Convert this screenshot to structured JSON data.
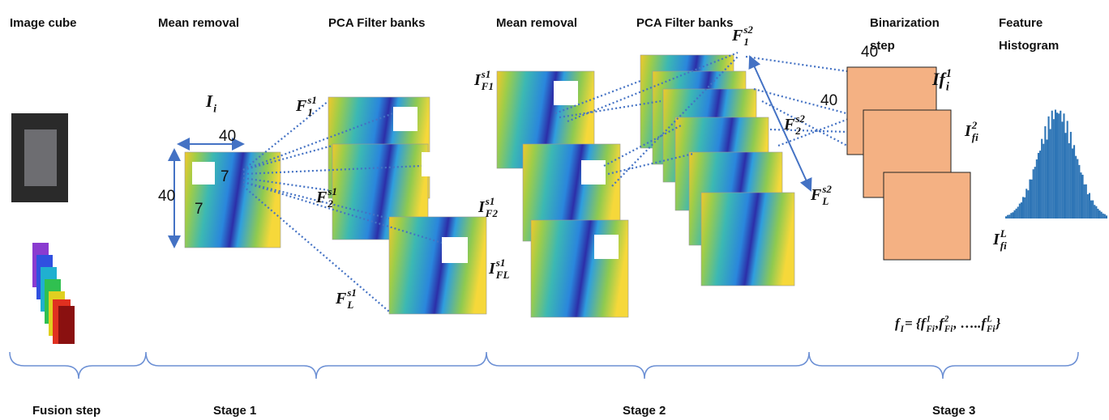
{
  "headers": [
    [
      "Image cube"
    ],
    [
      "Mean removal"
    ],
    [
      "PCA Filter banks"
    ],
    [
      "Mean removal"
    ],
    [
      "PCA Filter banks"
    ],
    [
      "Binarization",
      "step"
    ],
    [
      "Feature",
      "Histogram"
    ]
  ],
  "stages": [
    "Fusion step",
    "Stage 1",
    "Stage 2",
    "Stage 3"
  ],
  "dimensions": [
    "40",
    "40",
    "7",
    "7",
    "40",
    "40"
  ],
  "math_labels": [
    {
      "parts": [
        {
          "base": "I",
          "sub": "i"
        }
      ]
    },
    {
      "parts": [
        {
          "base": "F",
          "sub": "1",
          "sup": "s1"
        }
      ]
    },
    {
      "parts": [
        {
          "base": "F",
          "sub": "2",
          "sup": "s1"
        }
      ]
    },
    {
      "parts": [
        {
          "base": "F",
          "sub": "L",
          "sup": "s1"
        }
      ]
    },
    {
      "parts": [
        {
          "base": "I",
          "sub": "F1",
          "sup": "s1"
        }
      ]
    },
    {
      "parts": [
        {
          "base": "I",
          "sub": "F2",
          "sup": "s1"
        }
      ]
    },
    {
      "parts": [
        {
          "base": "I",
          "sub": "FL",
          "sup": "s1"
        }
      ]
    },
    {
      "parts": [
        {
          "base": "F",
          "sub": "1",
          "sup": "s2"
        }
      ]
    },
    {
      "parts": [
        {
          "base": "F",
          "sub": "2",
          "sup": "s2"
        }
      ]
    },
    {
      "parts": [
        {
          "base": "F",
          "sub": "L",
          "sup": "s2"
        }
      ]
    },
    {
      "parts": [
        {
          "base": "If",
          "sub": "i",
          "sup": "1"
        }
      ]
    },
    {
      "parts": [
        {
          "base": "I",
          "sub": "fi",
          "sup": "2"
        }
      ]
    },
    {
      "parts": [
        {
          "base": "I",
          "sub": "fi",
          "sup": "L"
        }
      ]
    },
    {
      "parts": [
        {
          "base": "f",
          "sub": "I"
        },
        {
          "text": " = {"
        },
        {
          "base": "f",
          "sub": "Fi",
          "sup": "1"
        },
        {
          "text": ", "
        },
        {
          "base": "f",
          "sub": "Fi",
          "sup": "2"
        },
        {
          "text": ", ….."
        },
        {
          "base": "f",
          "sub": "Fi",
          "sup": "L"
        },
        {
          "text": "}"
        }
      ]
    }
  ]
}
